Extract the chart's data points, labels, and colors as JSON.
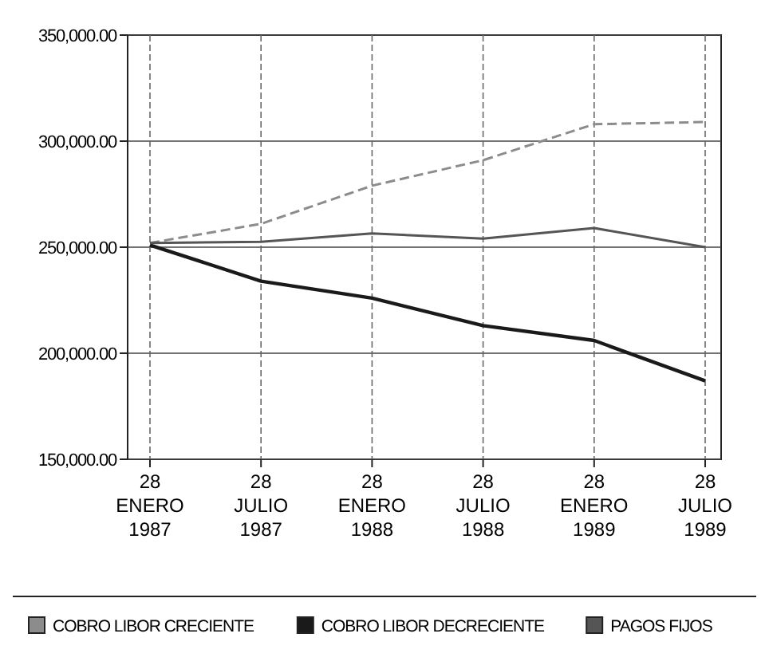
{
  "chart_data": {
    "type": "line",
    "categories": [
      "28\nENERO\n1987",
      "28\nJULIO\n1987",
      "28\nENERO\n1988",
      "28\nJULIO\n1988",
      "28\nENERO\n1989",
      "28\nJULIO\n1989"
    ],
    "series": [
      {
        "name": "COBRO LIBOR CRECIENTE",
        "color": "#8c8c8c",
        "line_style": "dashed",
        "values": [
          252000,
          261000,
          279000,
          291000,
          308000,
          309000
        ]
      },
      {
        "name": "COBRO LIBOR DECRECIENTE",
        "color": "#1a1a1a",
        "values": [
          251000,
          234000,
          226000,
          213000,
          206000,
          187000
        ]
      },
      {
        "name": "PAGOS FIJOS",
        "color": "#555555",
        "values": [
          252000,
          252500,
          256500,
          254000,
          259000,
          250000
        ]
      }
    ],
    "ylim": [
      150000,
      350000
    ],
    "yticks": [
      {
        "value": 150000,
        "label": "150,000.00"
      },
      {
        "value": 200000,
        "label": "200,000.00"
      },
      {
        "value": 250000,
        "label": "250,000.00"
      },
      {
        "value": 300000,
        "label": "300,000.00"
      },
      {
        "value": 350000,
        "label": "350,000.00"
      }
    ],
    "grid": true,
    "legend": "bottom"
  }
}
